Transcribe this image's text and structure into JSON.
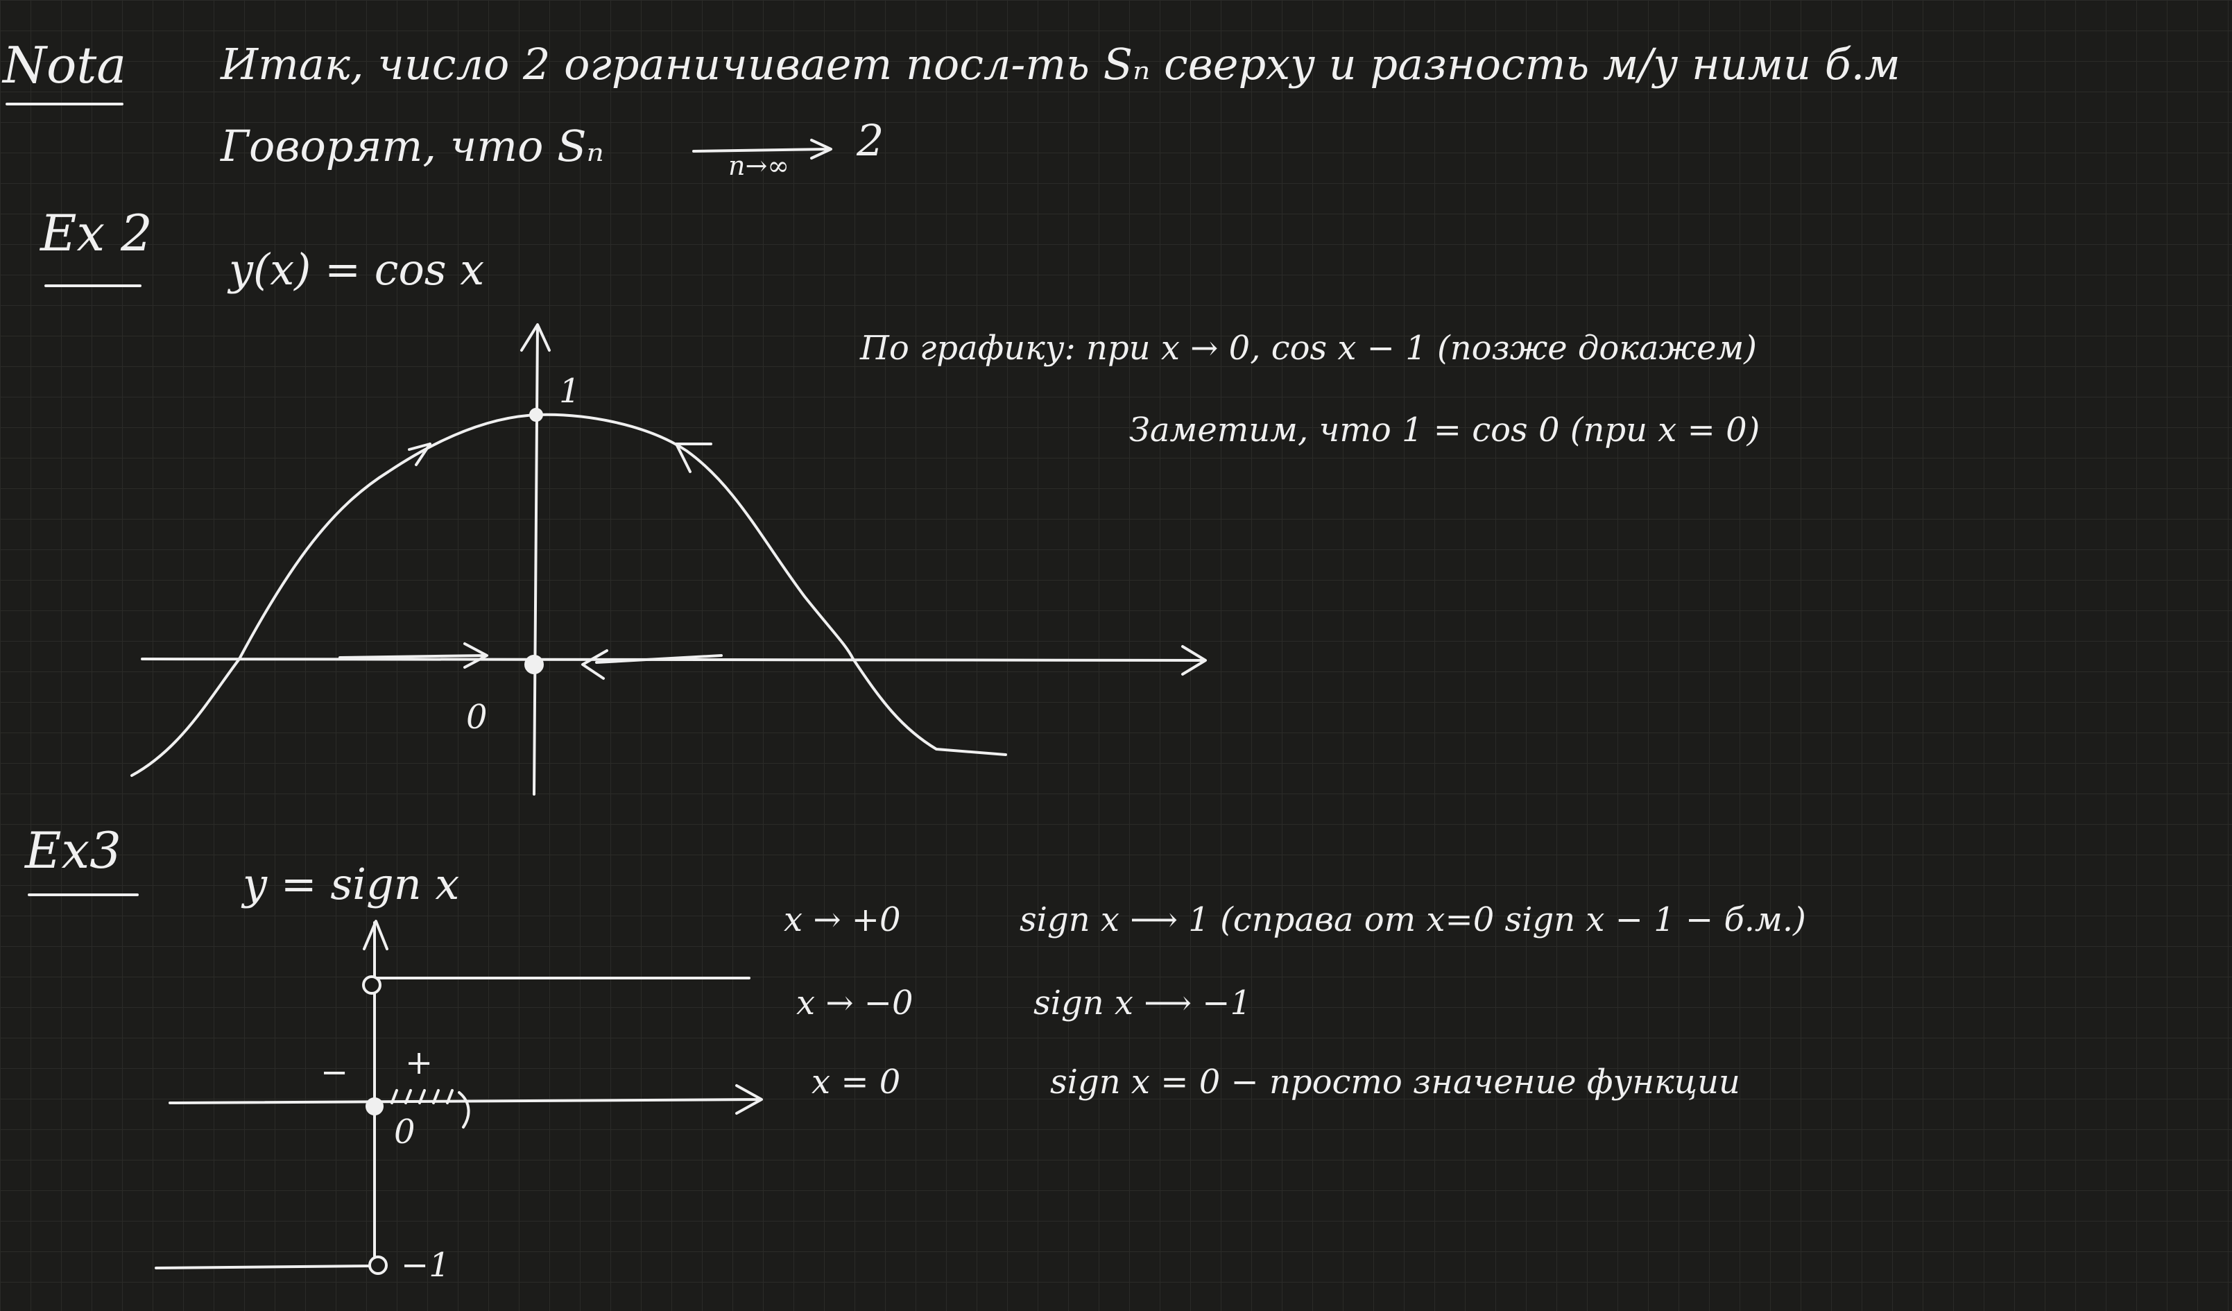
{
  "note": {
    "label": "Nota",
    "line1": "Итак, число 2 ограничивает посл-ть Sₙ сверху и разность м/у ними б.м",
    "line2_prefix": "Говорят, что Sₙ",
    "line2_under": "n→∞",
    "line2_value": "2"
  },
  "ex2": {
    "label": "Ex 2",
    "function": "y(x) = cos x",
    "remark1": "По графику: при x → 0, cos x − 1 (позже докажем)",
    "remark2": "Заметим, что 1 = cos 0 (при x = 0)",
    "graph": {
      "y_tick": "1",
      "origin": "0"
    }
  },
  "ex3": {
    "label": "Ex3",
    "function": "y = sign x",
    "graph": {
      "origin": "0",
      "minus_sign": "−",
      "plus_sign": "+",
      "level_neg": "−1"
    },
    "rows": [
      {
        "condition": "x → +0",
        "result": "sign x ⟶ 1 (справа от x=0  sign x − 1 − б.м.)"
      },
      {
        "condition": "x → −0",
        "result": "sign x ⟶ −1"
      },
      {
        "condition": "x = 0",
        "result": "sign x = 0  −  просто значение функции"
      }
    ]
  },
  "colors": {
    "background": "#1c1c1a",
    "grid": "#2b2b28",
    "ink": "#f0f0f0"
  }
}
